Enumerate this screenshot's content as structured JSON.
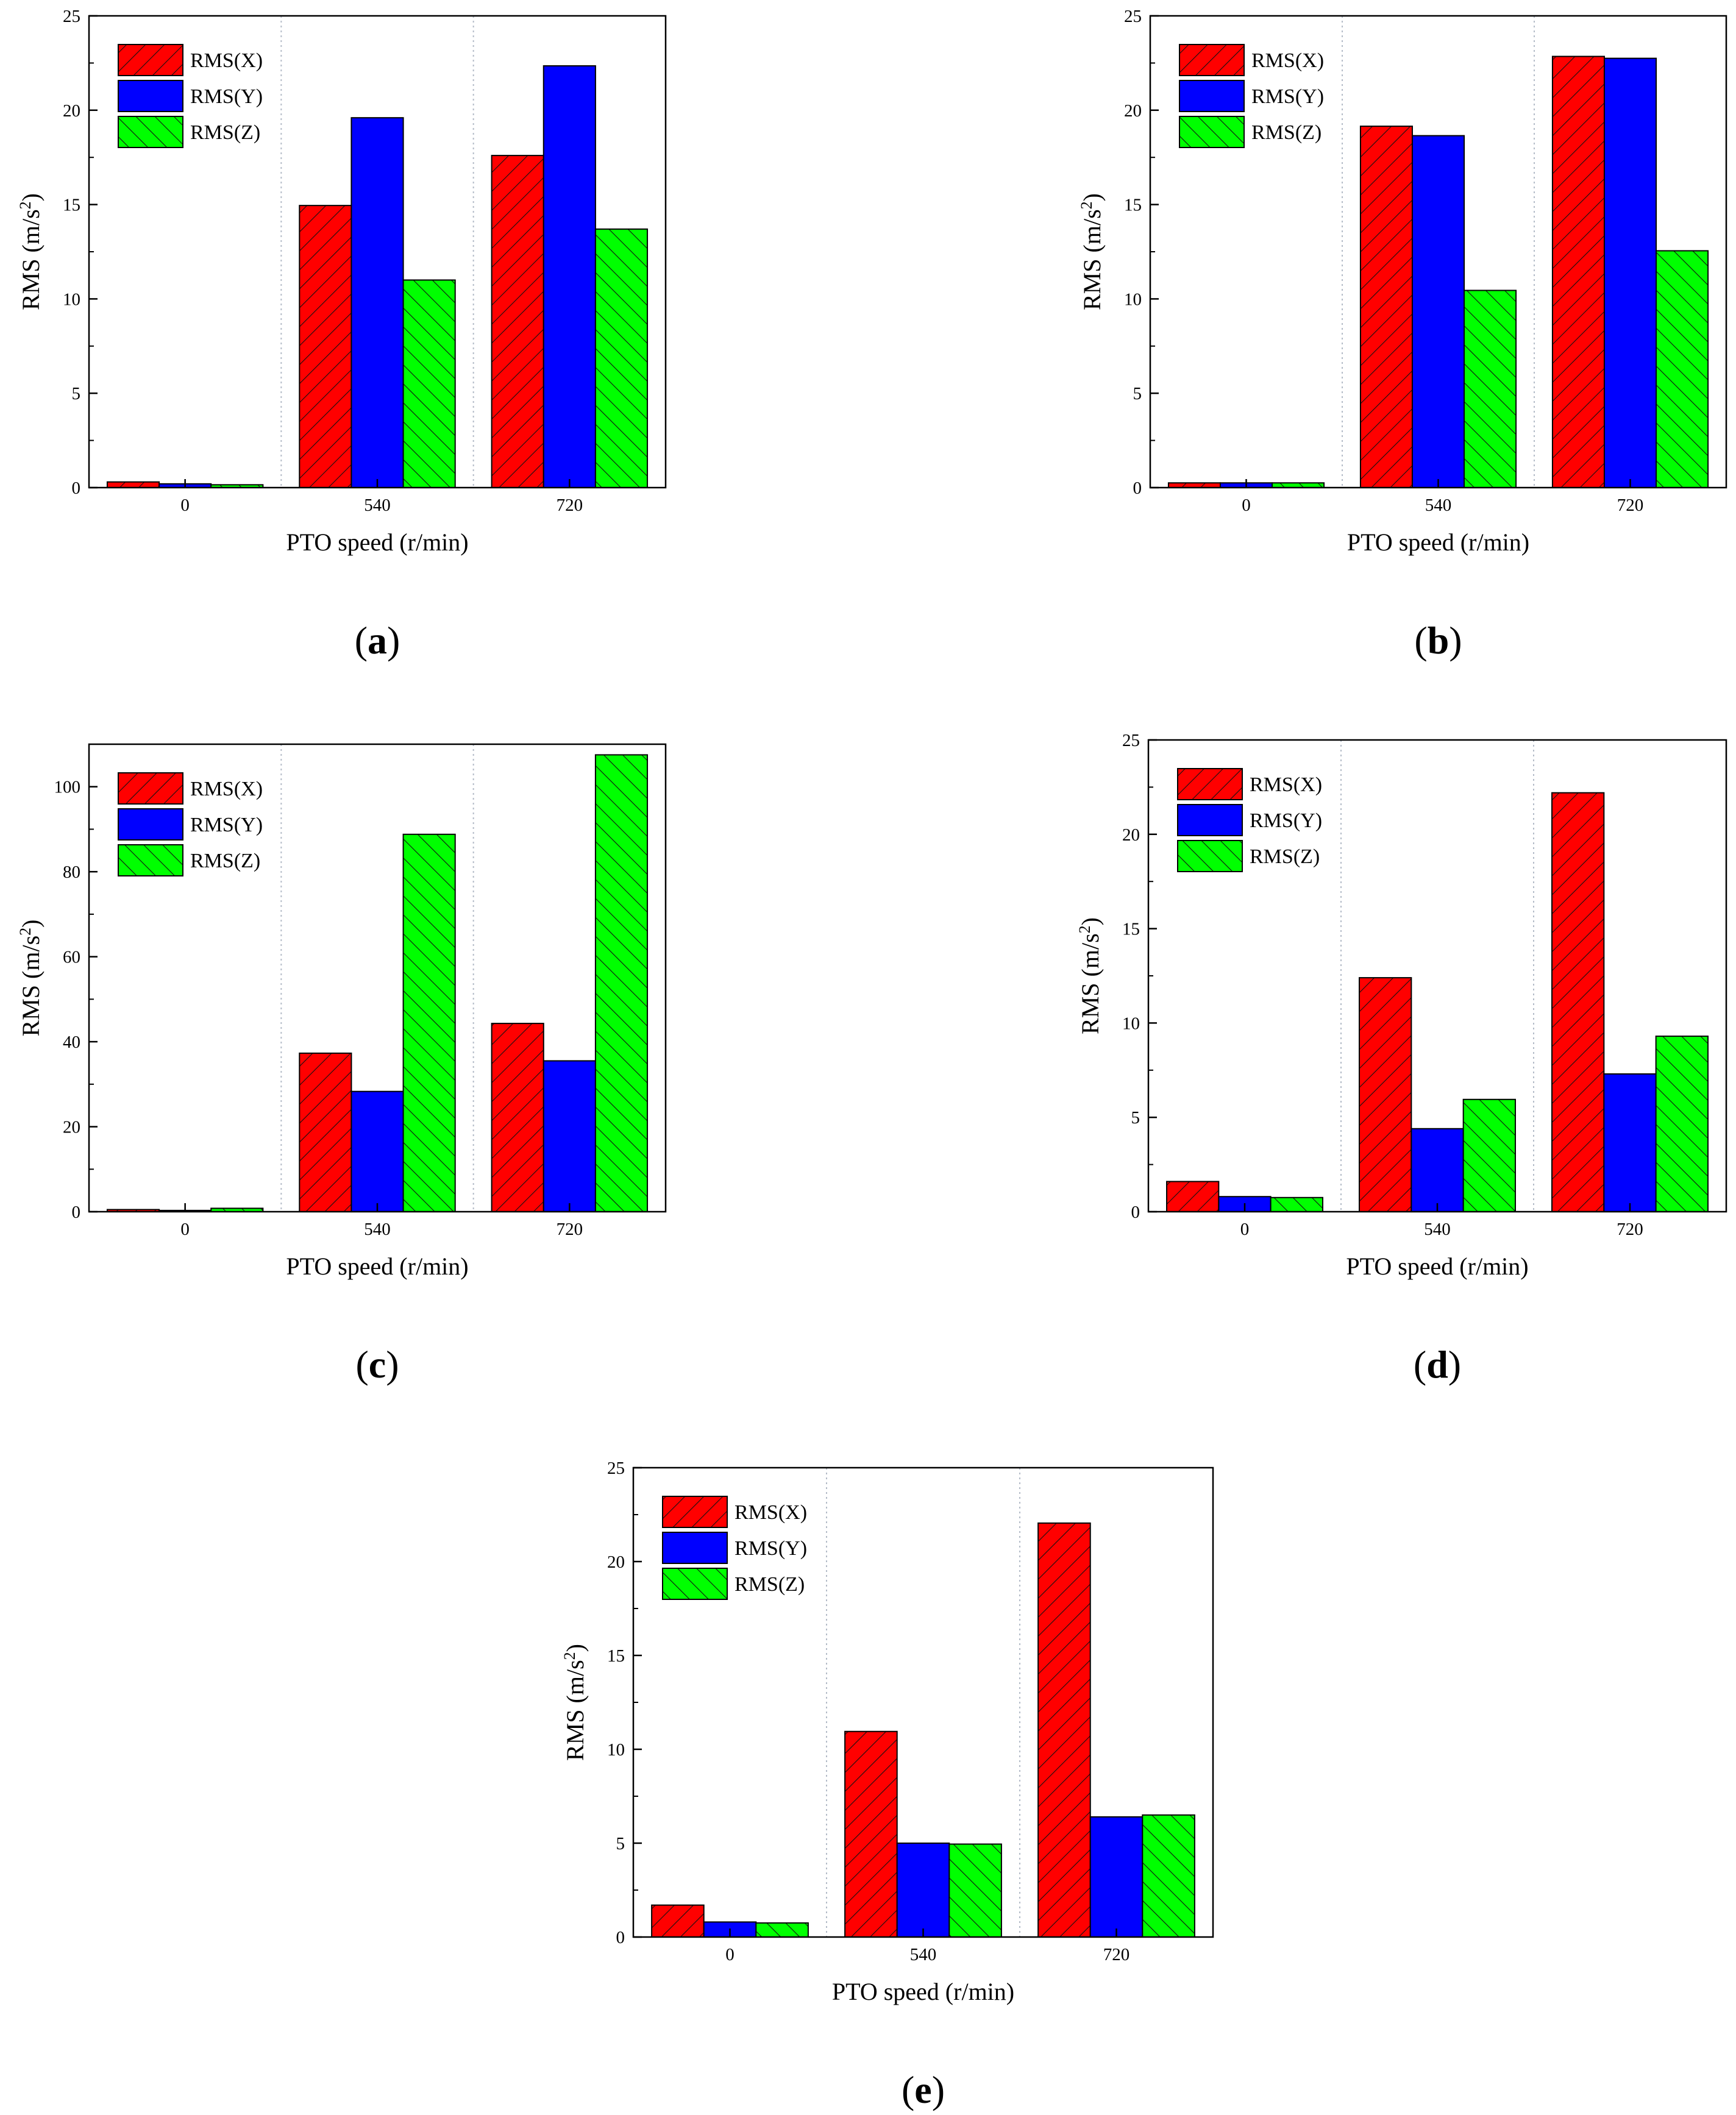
{
  "colors": {
    "background": "#ffffff",
    "axis": "#000000",
    "grid": "#b4bcc8",
    "hatch": "#111111"
  },
  "chart_data": [
    {
      "type": "bar",
      "panel_label": "a",
      "categories": [
        "0",
        "540",
        "720"
      ],
      "series": [
        {
          "name": "RMS(X)",
          "color": "#ff0000",
          "pattern": "hatch-right",
          "values": [
            0.3,
            14.95,
            17.6
          ]
        },
        {
          "name": "RMS(Y)",
          "color": "#0000ff",
          "pattern": "solid",
          "values": [
            0.2,
            19.6,
            22.35
          ]
        },
        {
          "name": "RMS(Z)",
          "color": "#00ff00",
          "pattern": "hatch-left",
          "values": [
            0.15,
            11.0,
            13.7
          ]
        }
      ],
      "xlabel": "PTO speed (r/min)",
      "ylabel_prefix": "RMS (m/s",
      "ylabel_sup": "2",
      "ylabel_suffix": ")",
      "ylim": [
        0,
        25
      ],
      "yticks": [
        0,
        5,
        10,
        15,
        20,
        25
      ],
      "grid": "vertical dotted separators between categories",
      "legend_position": "top-left"
    },
    {
      "type": "bar",
      "panel_label": "b",
      "categories": [
        "0",
        "540",
        "720"
      ],
      "series": [
        {
          "name": "RMS(X)",
          "color": "#ff0000",
          "pattern": "hatch-right",
          "values": [
            0.25,
            19.15,
            22.85
          ]
        },
        {
          "name": "RMS(Y)",
          "color": "#0000ff",
          "pattern": "solid",
          "values": [
            0.25,
            18.65,
            22.75
          ]
        },
        {
          "name": "RMS(Z)",
          "color": "#00ff00",
          "pattern": "hatch-left",
          "values": [
            0.25,
            10.45,
            12.55
          ]
        }
      ],
      "xlabel": "PTO speed (r/min)",
      "ylabel_prefix": "RMS (m/s",
      "ylabel_sup": "2",
      "ylabel_suffix": ")",
      "ylim": [
        0,
        25
      ],
      "yticks": [
        0,
        5,
        10,
        15,
        20,
        25
      ],
      "grid": "vertical dotted separators between categories",
      "legend_position": "top-left"
    },
    {
      "type": "bar",
      "panel_label": "c",
      "categories": [
        "0",
        "540",
        "720"
      ],
      "series": [
        {
          "name": "RMS(X)",
          "color": "#ff0000",
          "pattern": "hatch-right",
          "values": [
            0.5,
            37.3,
            44.3
          ]
        },
        {
          "name": "RMS(Y)",
          "color": "#0000ff",
          "pattern": "solid",
          "values": [
            0.3,
            28.3,
            35.5
          ]
        },
        {
          "name": "RMS(Z)",
          "color": "#00ff00",
          "pattern": "hatch-left",
          "values": [
            0.8,
            88.8,
            107.5
          ]
        }
      ],
      "xlabel": "PTO speed (r/min)",
      "ylabel_prefix": "RMS (m/s",
      "ylabel_sup": "2",
      "ylabel_suffix": ")",
      "ylim": [
        0,
        110
      ],
      "yticks": [
        0,
        20,
        40,
        60,
        80,
        100
      ],
      "grid": "vertical dotted separators between categories",
      "legend_position": "top-left"
    },
    {
      "type": "bar",
      "panel_label": "d",
      "categories": [
        "0",
        "540",
        "720"
      ],
      "series": [
        {
          "name": "RMS(X)",
          "color": "#ff0000",
          "pattern": "hatch-right",
          "values": [
            1.6,
            12.4,
            22.2
          ]
        },
        {
          "name": "RMS(Y)",
          "color": "#0000ff",
          "pattern": "solid",
          "values": [
            0.8,
            4.4,
            7.3
          ]
        },
        {
          "name": "RMS(Z)",
          "color": "#00ff00",
          "pattern": "hatch-left",
          "values": [
            0.75,
            5.95,
            9.3
          ]
        }
      ],
      "xlabel": "PTO speed (r/min)",
      "ylabel_prefix": "RMS (m/s",
      "ylabel_sup": "2",
      "ylabel_suffix": ")",
      "ylim": [
        0,
        25
      ],
      "yticks": [
        0,
        5,
        10,
        15,
        20,
        25
      ],
      "grid": "vertical dotted separators between categories",
      "legend_position": "top-left"
    },
    {
      "type": "bar",
      "panel_label": "e",
      "categories": [
        "0",
        "540",
        "720"
      ],
      "series": [
        {
          "name": "RMS(X)",
          "color": "#ff0000",
          "pattern": "hatch-right",
          "values": [
            1.7,
            10.95,
            22.05
          ]
        },
        {
          "name": "RMS(Y)",
          "color": "#0000ff",
          "pattern": "solid",
          "values": [
            0.8,
            5.0,
            6.4
          ]
        },
        {
          "name": "RMS(Z)",
          "color": "#00ff00",
          "pattern": "hatch-left",
          "values": [
            0.75,
            4.95,
            6.5
          ]
        }
      ],
      "xlabel": "PTO speed (r/min)",
      "ylabel_prefix": "RMS (m/s",
      "ylabel_sup": "2",
      "ylabel_suffix": ")",
      "ylim": [
        0,
        25
      ],
      "yticks": [
        0,
        5,
        10,
        15,
        20,
        25
      ],
      "grid": "vertical dotted separators between categories",
      "legend_position": "top-left"
    }
  ]
}
